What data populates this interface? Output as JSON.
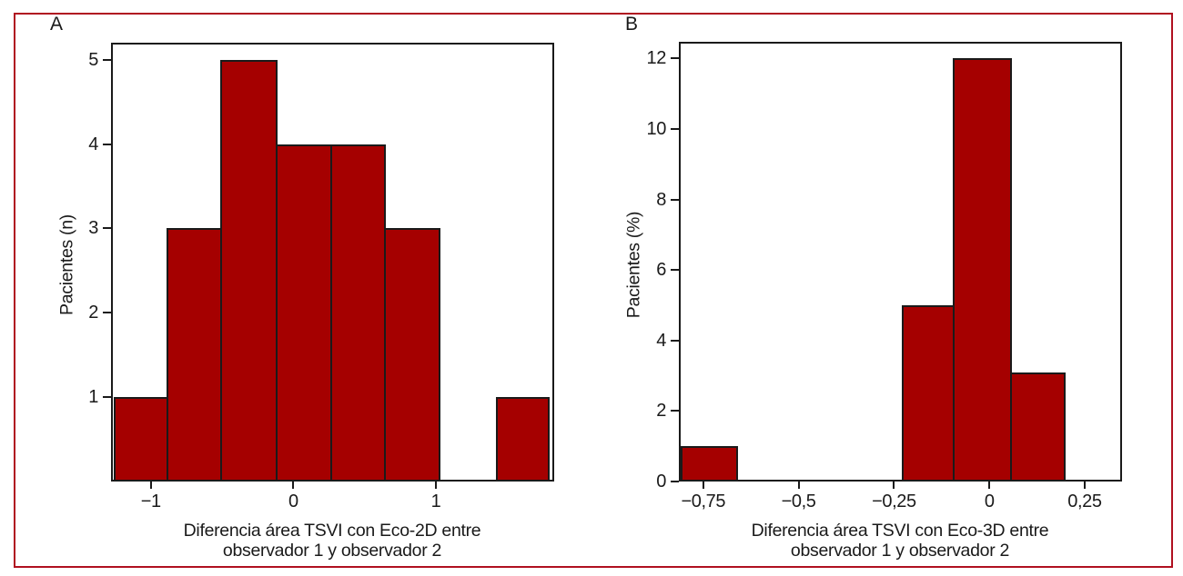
{
  "colors": {
    "bar_fill": "#a50000",
    "bar_stroke": "#1a1a1a",
    "axis": "#1a1a1a",
    "frame_border": "#b01020",
    "text": "#1a1a1a"
  },
  "chart_data": [
    {
      "type": "bar",
      "subtype": "histogram",
      "panel": "A",
      "ylabel": "Pacientes (n)",
      "xlabel": "Diferencia área TSVI con Eco-2D entre observador 1 y observador 2",
      "xlabel_line1": "Diferencia área TSVI con Eco-2D entre",
      "xlabel_line2": "observador 1 y observador 2",
      "bin_edges": [
        -1.26,
        -0.88,
        -0.5,
        -0.11,
        0.27,
        0.65,
        1.03,
        1.42,
        1.8
      ],
      "counts": [
        1,
        3,
        5,
        4,
        4,
        3,
        0,
        1
      ],
      "xlim": [
        -1.28,
        1.83
      ],
      "ylim": [
        0,
        5.2
      ],
      "grid": false,
      "legend": false,
      "xticks": [
        {
          "v": -1,
          "label": "−1"
        },
        {
          "v": 0,
          "label": "0"
        },
        {
          "v": 1,
          "label": "1"
        }
      ],
      "yticks": [
        {
          "v": 1,
          "label": "1"
        },
        {
          "v": 2,
          "label": "2"
        },
        {
          "v": 3,
          "label": "3"
        },
        {
          "v": 4,
          "label": "4"
        },
        {
          "v": 5,
          "label": "5"
        }
      ]
    },
    {
      "type": "bar",
      "subtype": "histogram",
      "panel": "B",
      "ylabel": "Pacientes (%)",
      "xlabel": "Diferencia área TSVI con Eco-3D entre observador 1 y observador 2",
      "xlabel_line1": "Diferencia área TSVI con Eco-3D entre",
      "xlabel_line2": "observador 1 y observador 2",
      "bin_edges": [
        -0.81,
        -0.66,
        -0.52,
        -0.38,
        -0.23,
        -0.09,
        0.06,
        0.2
      ],
      "counts": [
        1,
        0,
        0,
        0,
        5,
        12,
        3.1
      ],
      "xlim": [
        -0.814,
        0.348
      ],
      "ylim": [
        0,
        12.47
      ],
      "grid": false,
      "legend": false,
      "xticks": [
        {
          "v": -0.75,
          "label": "−0,75"
        },
        {
          "v": -0.5,
          "label": "−0,5"
        },
        {
          "v": -0.25,
          "label": "−0,25"
        },
        {
          "v": 0,
          "label": "0"
        },
        {
          "v": 0.25,
          "label": "0,25"
        }
      ],
      "yticks": [
        {
          "v": 0,
          "label": "0"
        },
        {
          "v": 2,
          "label": "2"
        },
        {
          "v": 4,
          "label": "4"
        },
        {
          "v": 6,
          "label": "6"
        },
        {
          "v": 8,
          "label": "8"
        },
        {
          "v": 10,
          "label": "10"
        },
        {
          "v": 12,
          "label": "12"
        }
      ]
    }
  ]
}
